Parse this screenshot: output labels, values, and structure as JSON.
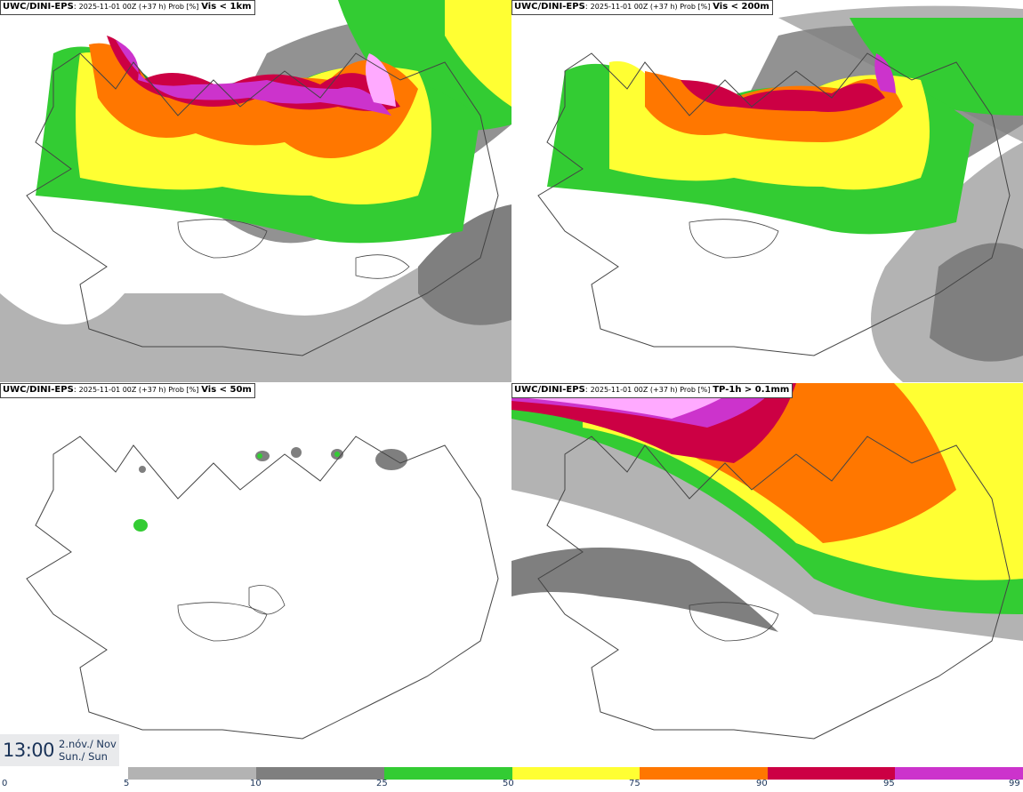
{
  "panels": [
    {
      "id": "vis1km",
      "model": "UWC/DINI-EPS",
      "run": "2025-11-01 00Z (+37 h) Prob [%]",
      "variable": "Vis < 1km"
    },
    {
      "id": "vis200m",
      "model": "UWC/DINI-EPS",
      "run": "2025-11-01 00Z (+37 h) Prob [%]",
      "variable": "Vis < 200m"
    },
    {
      "id": "vis50m",
      "model": "UWC/DINI-EPS",
      "run": "2025-11-01 00Z (+37 h) Prob [%]",
      "variable": "Vis < 50m"
    },
    {
      "id": "tp1h",
      "model": "UWC/DINI-EPS",
      "run": "2025-11-01 00Z (+37 h) Prob [%]",
      "variable": "TP-1h > 0.1mm"
    }
  ],
  "valid_time": {
    "time": "13:00",
    "date": "2.nóv./ Nov",
    "weekday": "Sun./ Sun"
  },
  "legend": {
    "colors": [
      "#b3b3b3",
      "#7f7f7f",
      "#33cc33",
      "#ffff33",
      "#ff7700",
      "#cc0044",
      "#cc33cc",
      "#ffaaff"
    ],
    "ticks": [
      "0",
      "5",
      "10",
      "25",
      "50",
      "75",
      "90",
      "95",
      "99"
    ]
  }
}
